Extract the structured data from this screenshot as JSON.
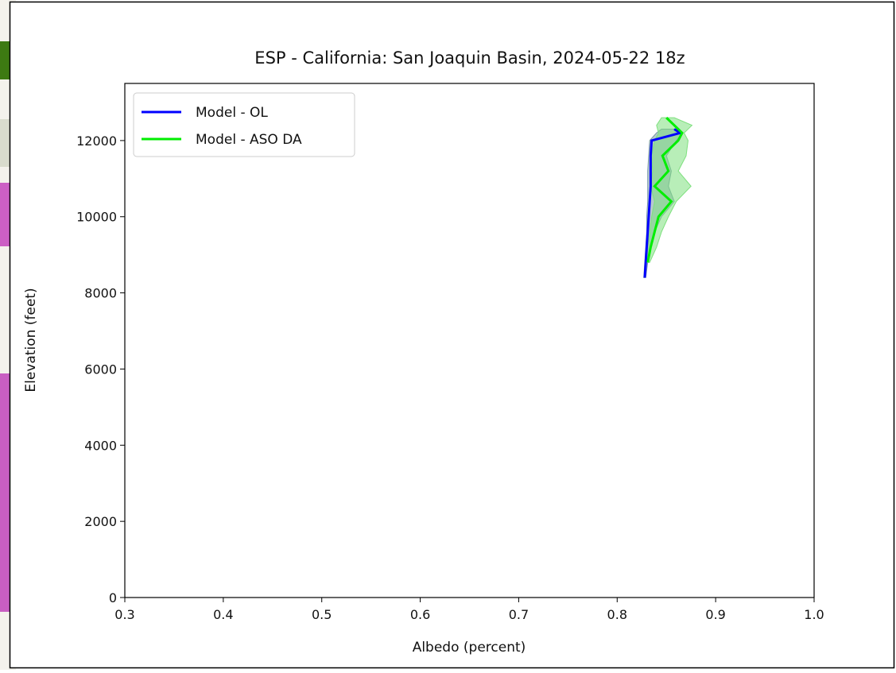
{
  "chart_data": {
    "type": "line",
    "title": "ESP - California: San Joaquin Basin, 2024-05-22 18z",
    "x_label": "Albedo (percent)",
    "y_label": "Elevation (feet)",
    "xlim": [
      0.3,
      1.0
    ],
    "ylim": [
      0,
      13500
    ],
    "xticks": [
      0.3,
      0.4,
      0.5,
      0.6,
      0.7,
      0.8,
      0.9,
      {
        "value": 1.0,
        "label": "1.0"
      }
    ],
    "yticks": [
      0,
      2000,
      4000,
      6000,
      8000,
      10000,
      12000
    ],
    "legend": "upper left",
    "series": [
      {
        "name": "Model - OL",
        "color": "#0000ff",
        "band_color": "#7a9aa8",
        "y": [
          8400,
          8800,
          9200,
          9600,
          10000,
          10400,
          10800,
          11200,
          11600,
          12000,
          12200,
          12300
        ],
        "x": [
          0.828,
          0.829,
          0.83,
          0.831,
          0.832,
          0.833,
          0.834,
          0.834,
          0.834,
          0.835,
          0.864,
          0.858
        ],
        "x_low": [
          0.827,
          0.828,
          0.829,
          0.83,
          0.83,
          0.831,
          0.831,
          0.831,
          0.832,
          0.833,
          0.84,
          0.845
        ],
        "x_high": [
          0.829,
          0.831,
          0.834,
          0.838,
          0.845,
          0.858,
          0.852,
          0.855,
          0.85,
          0.86,
          0.866,
          0.862
        ]
      },
      {
        "name": "Model - ASO DA",
        "color": "#00ee00",
        "band_color": "#7ee07e",
        "y": [
          8800,
          9200,
          9600,
          10000,
          10400,
          10800,
          11200,
          11600,
          12000,
          12200,
          12400,
          12600
        ],
        "x": [
          0.831,
          0.834,
          0.838,
          0.842,
          0.855,
          0.838,
          0.852,
          0.846,
          0.862,
          0.866,
          0.858,
          0.85
        ],
        "x_low": [
          0.83,
          0.831,
          0.833,
          0.835,
          0.838,
          0.834,
          0.836,
          0.835,
          0.838,
          0.842,
          0.84,
          0.845
        ],
        "x_high": [
          0.833,
          0.84,
          0.845,
          0.852,
          0.86,
          0.875,
          0.862,
          0.87,
          0.872,
          0.868,
          0.876,
          0.858
        ]
      }
    ]
  }
}
